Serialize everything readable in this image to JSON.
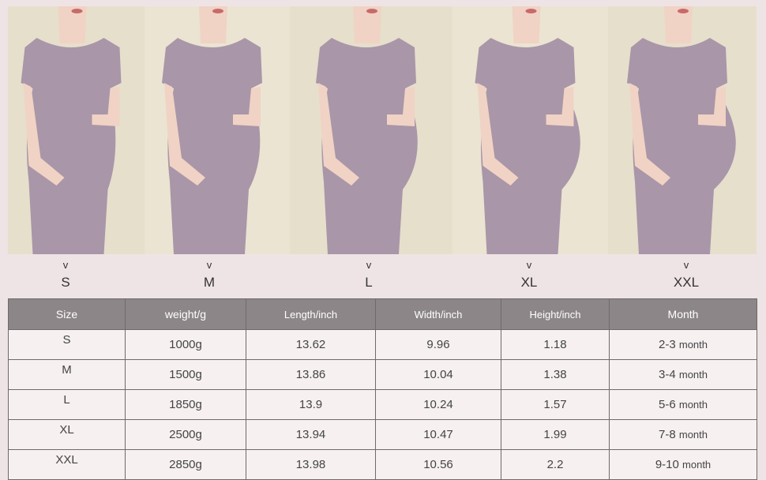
{
  "photos": [
    {
      "arrow": "v",
      "label": "S"
    },
    {
      "arrow": "v",
      "label": "M"
    },
    {
      "arrow": "v",
      "label": "L"
    },
    {
      "arrow": "v",
      "label": "XL"
    },
    {
      "arrow": "v",
      "label": "XXL"
    }
  ],
  "table": {
    "header": [
      "Size",
      "weight/g",
      "Length/inch",
      "Width/inch",
      "Height/inch",
      "Month"
    ],
    "rows": [
      [
        "S",
        "1000g",
        "13.62",
        "9.96",
        "1.18",
        {
          "range": "2-3",
          "unit": "month"
        }
      ],
      [
        "M",
        "1500g",
        "13.86",
        "10.04",
        "1.38",
        {
          "range": "3-4",
          "unit": "month"
        }
      ],
      [
        "L",
        "1850g",
        "13.9",
        "10.24",
        "1.57",
        {
          "range": "5-6",
          "unit": "month"
        }
      ],
      [
        "XL",
        "2500g",
        "13.94",
        "10.47",
        "1.99",
        {
          "range": "7-8",
          "unit": "month"
        }
      ],
      [
        "XXL",
        "2850g",
        "13.98",
        "10.56",
        "2.2",
        {
          "range": "9-10",
          "unit": "month"
        }
      ]
    ]
  }
}
